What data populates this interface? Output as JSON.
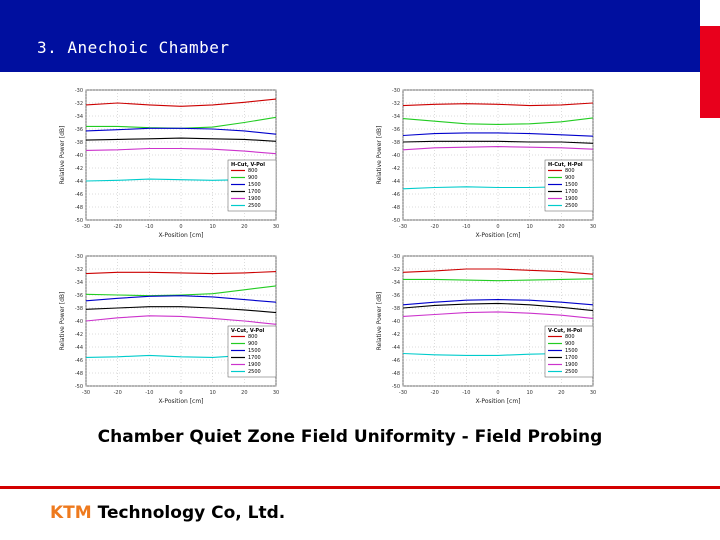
{
  "header": {
    "title": "3. Anechoic Chamber"
  },
  "caption": "Chamber Quiet Zone Field Uniformity - Field Probing",
  "footer": {
    "company_prefix": "KTM",
    "company_rest": " Technology Co, Ltd."
  },
  "colors": {
    "header_bg": "#000f9f",
    "accent_red": "#e8001c",
    "footer_line": "#d30000",
    "ktm_orange": "#ee7a1e"
  },
  "chart_data": [
    {
      "type": "line",
      "xlabel": "X-Position [cm]",
      "ylabel": "Relative Power [dB]",
      "x": [
        -30,
        -20,
        -10,
        0,
        10,
        20,
        30
      ],
      "xticks": [
        -30,
        -20,
        -10,
        0,
        10,
        20,
        30
      ],
      "ylim": [
        -50,
        -30
      ],
      "yticks": [
        -30,
        -32,
        -34,
        -36,
        -38,
        -40,
        -42,
        -44,
        -46,
        -48,
        -50
      ],
      "grid": true,
      "legend_title": "H-Cut, V-Pol",
      "legend_position": "right",
      "series": [
        {
          "name": "800",
          "color": "#cc0000",
          "values": [
            -32.3,
            -32.0,
            -32.3,
            -32.5,
            -32.3,
            -31.9,
            -31.4
          ]
        },
        {
          "name": "900",
          "color": "#22cc22",
          "values": [
            -35.6,
            -35.6,
            -35.8,
            -35.9,
            -35.7,
            -35.0,
            -34.2
          ]
        },
        {
          "name": "1500",
          "color": "#0000cc",
          "values": [
            -36.3,
            -36.1,
            -35.9,
            -35.9,
            -36.0,
            -36.3,
            -36.8
          ]
        },
        {
          "name": "1700",
          "color": "#000000",
          "values": [
            -37.7,
            -37.6,
            -37.5,
            -37.4,
            -37.5,
            -37.6,
            -37.9
          ]
        },
        {
          "name": "1900",
          "color": "#cc33cc",
          "values": [
            -39.3,
            -39.2,
            -39.0,
            -39.0,
            -39.1,
            -39.4,
            -39.8
          ]
        },
        {
          "name": "2500",
          "color": "#00cccc",
          "values": [
            -44.0,
            -43.9,
            -43.7,
            -43.8,
            -43.9,
            -43.8,
            -43.9
          ]
        }
      ]
    },
    {
      "type": "line",
      "xlabel": "X-Position [cm]",
      "ylabel": "Relative Power [dB]",
      "x": [
        -30,
        -20,
        -10,
        0,
        10,
        20,
        30
      ],
      "xticks": [
        -30,
        -20,
        -10,
        0,
        10,
        20,
        30
      ],
      "ylim": [
        -50,
        -30
      ],
      "yticks": [
        -30,
        -32,
        -34,
        -36,
        -38,
        -40,
        -42,
        -44,
        -46,
        -48,
        -50
      ],
      "grid": true,
      "legend_title": "H-Cut, H-Pol",
      "legend_position": "right",
      "series": [
        {
          "name": "800",
          "color": "#cc0000",
          "values": [
            -32.4,
            -32.2,
            -32.1,
            -32.2,
            -32.4,
            -32.3,
            -32.0
          ]
        },
        {
          "name": "900",
          "color": "#22cc22",
          "values": [
            -34.4,
            -34.8,
            -35.2,
            -35.3,
            -35.2,
            -34.9,
            -34.3
          ]
        },
        {
          "name": "1500",
          "color": "#0000cc",
          "values": [
            -37.0,
            -36.7,
            -36.6,
            -36.6,
            -36.7,
            -36.9,
            -37.1
          ]
        },
        {
          "name": "1700",
          "color": "#000000",
          "values": [
            -38.0,
            -37.9,
            -37.9,
            -37.9,
            -38.0,
            -38.0,
            -38.2
          ]
        },
        {
          "name": "1900",
          "color": "#cc33cc",
          "values": [
            -39.2,
            -38.9,
            -38.8,
            -38.7,
            -38.8,
            -38.9,
            -39.1
          ]
        },
        {
          "name": "2500",
          "color": "#00cccc",
          "values": [
            -45.2,
            -45.0,
            -44.9,
            -45.0,
            -45.0,
            -44.9,
            -45.0
          ]
        }
      ]
    },
    {
      "type": "line",
      "xlabel": "X-Position [cm]",
      "ylabel": "Relative Power [dB]",
      "x": [
        -30,
        -20,
        -10,
        0,
        10,
        20,
        30
      ],
      "xticks": [
        -30,
        -20,
        -10,
        0,
        10,
        20,
        30
      ],
      "ylim": [
        -50,
        -30
      ],
      "yticks": [
        -30,
        -32,
        -34,
        -36,
        -38,
        -40,
        -42,
        -44,
        -46,
        -48,
        -50
      ],
      "grid": true,
      "legend_title": "V-Cut, V-Pol",
      "legend_position": "right",
      "series": [
        {
          "name": "800",
          "color": "#cc0000",
          "values": [
            -32.7,
            -32.5,
            -32.5,
            -32.6,
            -32.7,
            -32.6,
            -32.4
          ]
        },
        {
          "name": "900",
          "color": "#22cc22",
          "values": [
            -35.9,
            -36.0,
            -36.1,
            -36.0,
            -35.8,
            -35.2,
            -34.6
          ]
        },
        {
          "name": "1500",
          "color": "#0000cc",
          "values": [
            -36.9,
            -36.5,
            -36.2,
            -36.1,
            -36.3,
            -36.7,
            -37.1
          ]
        },
        {
          "name": "1700",
          "color": "#000000",
          "values": [
            -38.2,
            -38.0,
            -37.8,
            -37.8,
            -38.0,
            -38.3,
            -38.7
          ]
        },
        {
          "name": "1900",
          "color": "#cc33cc",
          "values": [
            -40.0,
            -39.5,
            -39.2,
            -39.3,
            -39.6,
            -40.0,
            -40.5
          ]
        },
        {
          "name": "2500",
          "color": "#00cccc",
          "values": [
            -45.6,
            -45.5,
            -45.3,
            -45.5,
            -45.6,
            -45.3,
            -45.2
          ]
        }
      ]
    },
    {
      "type": "line",
      "xlabel": "X-Position [cm]",
      "ylabel": "Relative Power [dB]",
      "x": [
        -30,
        -20,
        -10,
        0,
        10,
        20,
        30
      ],
      "xticks": [
        -30,
        -20,
        -10,
        0,
        10,
        20,
        30
      ],
      "ylim": [
        -50,
        -30
      ],
      "yticks": [
        -30,
        -32,
        -34,
        -36,
        -38,
        -40,
        -42,
        -44,
        -46,
        -48,
        -50
      ],
      "grid": true,
      "legend_title": "V-Cut, H-Pol",
      "legend_position": "right",
      "series": [
        {
          "name": "800",
          "color": "#cc0000",
          "values": [
            -32.5,
            -32.3,
            -32.0,
            -32.0,
            -32.2,
            -32.4,
            -32.8
          ]
        },
        {
          "name": "900",
          "color": "#22cc22",
          "values": [
            -33.6,
            -33.6,
            -33.7,
            -33.8,
            -33.7,
            -33.6,
            -33.5
          ]
        },
        {
          "name": "1500",
          "color": "#0000cc",
          "values": [
            -37.5,
            -37.1,
            -36.8,
            -36.7,
            -36.8,
            -37.1,
            -37.5
          ]
        },
        {
          "name": "1700",
          "color": "#000000",
          "values": [
            -38.0,
            -37.6,
            -37.4,
            -37.3,
            -37.5,
            -37.9,
            -38.4
          ]
        },
        {
          "name": "1900",
          "color": "#cc33cc",
          "values": [
            -39.3,
            -39.0,
            -38.7,
            -38.6,
            -38.8,
            -39.1,
            -39.6
          ]
        },
        {
          "name": "2500",
          "color": "#00cccc",
          "values": [
            -45.0,
            -45.2,
            -45.3,
            -45.3,
            -45.1,
            -45.0,
            -45.0
          ]
        }
      ]
    }
  ]
}
